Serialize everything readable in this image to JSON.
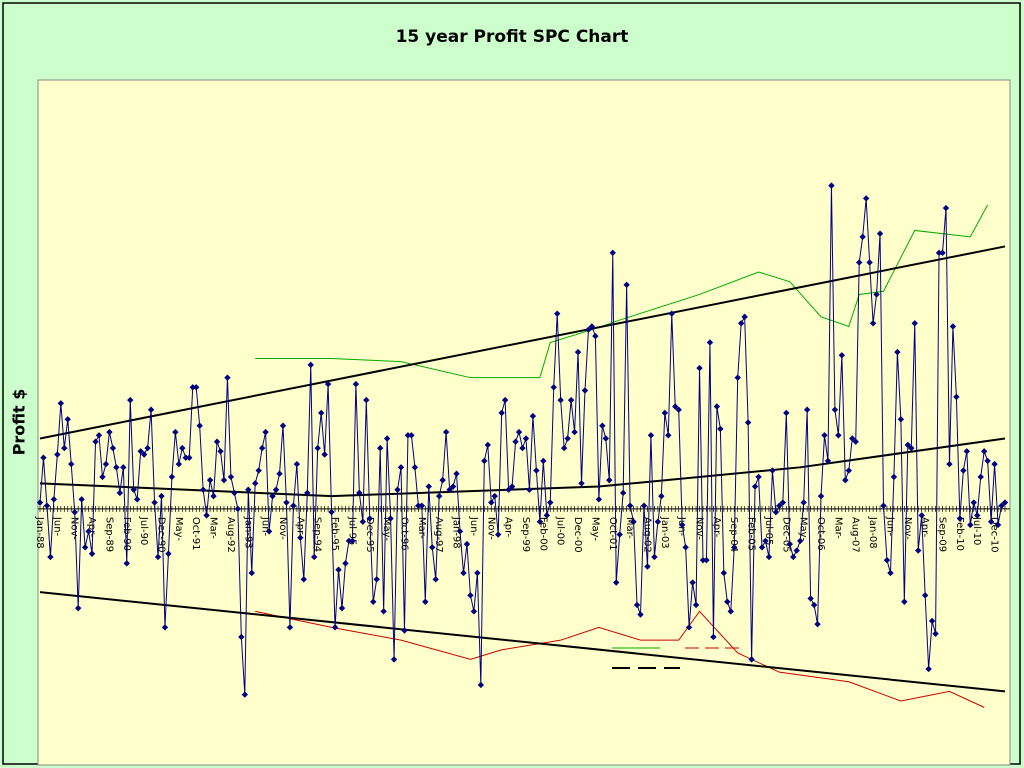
{
  "chart_data": {
    "type": "line",
    "title": "15 year Profit SPC Chart",
    "y_label": "Profit $",
    "categories": [
      "Jan-88",
      null,
      null,
      null,
      null,
      "Jun-",
      null,
      null,
      null,
      null,
      "Nov-",
      null,
      null,
      null,
      null,
      "Apr-",
      null,
      null,
      null,
      null,
      "Sep-89",
      null,
      null,
      null,
      null,
      "Feb-90",
      null,
      null,
      null,
      null,
      "Jul-90",
      null,
      null,
      null,
      null,
      "Dec-90",
      null,
      null,
      null,
      null,
      "May-",
      null,
      null,
      null,
      null,
      "Oct-91",
      null,
      null,
      null,
      null,
      "Mar-",
      null,
      null,
      null,
      null,
      "Aug-92",
      null,
      null,
      null,
      null,
      "Jan-93",
      null,
      null,
      null,
      null,
      "Jun-",
      null,
      null,
      null,
      null,
      "Nov-",
      null,
      null,
      null,
      null,
      "Apr-",
      null,
      null,
      null,
      null,
      "Sep-94",
      null,
      null,
      null,
      null,
      "Feb-95",
      null,
      null,
      null,
      null,
      "Jul-95",
      null,
      null,
      null,
      null,
      "Dec-95",
      null,
      null,
      null,
      null,
      "May-",
      null,
      null,
      null,
      null,
      "Oct-96",
      null,
      null,
      null,
      null,
      "Mar-",
      null,
      null,
      null,
      null,
      "Aug-97",
      null,
      null,
      null,
      null,
      "Jan-98",
      null,
      null,
      null,
      null,
      "Jun-",
      null,
      null,
      null,
      null,
      "Nov-",
      null,
      null,
      null,
      null,
      "Apr-",
      null,
      null,
      null,
      null,
      "Sep-99",
      null,
      null,
      null,
      null,
      "Feb-00",
      null,
      null,
      null,
      null,
      "Jul-00",
      null,
      null,
      null,
      null,
      "Dec-00",
      null,
      null,
      null,
      null,
      "May-",
      null,
      null,
      null,
      null,
      "Oct-01",
      null,
      null,
      null,
      null,
      "Mar-",
      null,
      null,
      null,
      null,
      "Aug-02",
      null,
      null,
      null,
      null,
      "Jan-03",
      null,
      null,
      null,
      null,
      "Jun-",
      null,
      null,
      null,
      null,
      "Nov-",
      null,
      null,
      null,
      null,
      "Apr-",
      null,
      null,
      null,
      null,
      "Sep-04",
      null,
      null,
      null,
      null,
      "Feb-05",
      null,
      null,
      null,
      null,
      "Jul-05",
      null,
      null,
      null,
      null,
      "Dec-05",
      null,
      null,
      null,
      null,
      "May-",
      null,
      null,
      null,
      null,
      "Oct-06",
      null,
      null,
      null,
      null,
      "Mar-",
      null,
      null,
      null,
      null,
      "Aug-07",
      null,
      null,
      null,
      null,
      "Jan-08",
      null,
      null,
      null,
      null,
      "Jun-",
      null,
      null,
      null,
      null,
      "Nov-",
      null,
      null,
      null,
      null,
      "Apr-",
      null,
      null,
      null,
      null,
      "Sep-09",
      null,
      null,
      null,
      null,
      "Feb-10",
      null,
      null,
      null,
      null,
      "Jul-10",
      null,
      null,
      null,
      null,
      "Dec-10",
      null,
      null,
      null
    ],
    "ylim": [
      -80,
      134
    ],
    "series": [
      {
        "color": "#000080",
        "marker": "diamond",
        "values": [
          2,
          16,
          1,
          -15,
          3,
          17,
          33,
          19,
          28,
          14,
          -1,
          -31,
          3,
          -12,
          -7,
          -14,
          21,
          23,
          10,
          14,
          24,
          19,
          13,
          5,
          13,
          -17,
          34,
          6,
          3,
          18,
          17,
          19,
          31,
          2,
          -15,
          4,
          -37,
          -14,
          10,
          24,
          14,
          19,
          16,
          16,
          38,
          38,
          26,
          6,
          -2,
          9,
          4,
          21,
          18,
          9,
          41,
          10,
          5,
          0,
          -40,
          -58,
          6,
          -20,
          8,
          12,
          19,
          24,
          -7,
          4,
          6,
          11,
          26,
          2,
          -37,
          1,
          14,
          -9,
          -22,
          5,
          45,
          -15,
          19,
          30,
          17,
          39,
          -1,
          -37,
          -19,
          -31,
          -17,
          -10,
          -10,
          39,
          5,
          -4,
          34,
          -3,
          -29,
          -22,
          19,
          -32,
          22,
          -3,
          -47,
          6,
          13,
          -38,
          23,
          23,
          13,
          1,
          1,
          -29,
          7,
          -12,
          -22,
          4,
          9,
          24,
          6,
          7,
          11,
          -7,
          -20,
          -11,
          -27,
          -32,
          -20,
          -55,
          15,
          20,
          2,
          4,
          -8,
          30,
          34,
          6,
          7,
          21,
          24,
          19,
          22,
          6,
          29,
          12,
          -4,
          15,
          -2,
          2,
          38,
          61,
          34,
          19,
          22,
          34,
          24,
          49,
          8,
          37,
          56,
          57,
          54,
          3,
          26,
          22,
          9,
          80,
          -23,
          -8,
          5,
          70,
          1,
          -4,
          -30,
          -33,
          1,
          -18,
          23,
          -15,
          -4,
          4,
          30,
          23,
          61,
          32,
          31,
          -5,
          -12,
          -37,
          -23,
          -30,
          44,
          -16,
          -16,
          52,
          -40,
          32,
          25,
          -20,
          -29,
          -32,
          -12,
          41,
          58,
          60,
          27,
          -47,
          7,
          10,
          -12,
          -10,
          -15,
          12,
          -1,
          1,
          2,
          30,
          -11,
          -15,
          -13,
          -10,
          2,
          31,
          -28,
          -30,
          -36,
          4,
          23,
          15,
          101,
          31,
          23,
          48,
          9,
          12,
          22,
          21,
          77,
          85,
          97,
          77,
          58,
          67,
          86,
          1,
          -16,
          -20,
          10,
          49,
          28,
          -29,
          20,
          19,
          58,
          -13,
          -2,
          -27,
          -50,
          -35,
          -39,
          80,
          80,
          94,
          14,
          57,
          35,
          -3,
          12,
          18,
          -5,
          2,
          -2,
          10,
          18,
          15,
          -4,
          14,
          -5,
          1,
          2
        ]
      }
    ],
    "lines": [
      {
        "color": "#00aa00",
        "x": [
          62,
          84,
          104,
          124,
          133,
          144,
          147,
          159,
          167,
          190,
          207,
          216,
          225,
          233,
          236,
          243,
          252,
          268,
          273
        ],
        "values": [
          47,
          47,
          46,
          41,
          41,
          41,
          52,
          56,
          59,
          67,
          74,
          71,
          60,
          57,
          67,
          68,
          87,
          85,
          95
        ]
      },
      {
        "color": "#cc0000",
        "x": [
          62,
          84,
          104,
          124,
          133,
          150,
          161,
          173,
          184,
          190,
          201,
          213,
          233,
          248,
          262,
          272
        ],
        "values": [
          -32,
          -37,
          -41,
          -47,
          -44,
          -41,
          -37,
          -41,
          -41,
          -32,
          -45,
          -51,
          -54,
          -60,
          -57,
          -62
        ]
      },
      {
        "color": "#000000",
        "x": [
          0,
          278
        ],
        "values": [
          22,
          82
        ]
      },
      {
        "color": "#000000",
        "x": [
          0,
          278
        ],
        "values": [
          -26,
          -57
        ]
      },
      {
        "color": "#000000",
        "x": [
          0,
          84,
          161,
          219,
          278
        ],
        "values": [
          8,
          4,
          7,
          13,
          22
        ]
      }
    ]
  }
}
